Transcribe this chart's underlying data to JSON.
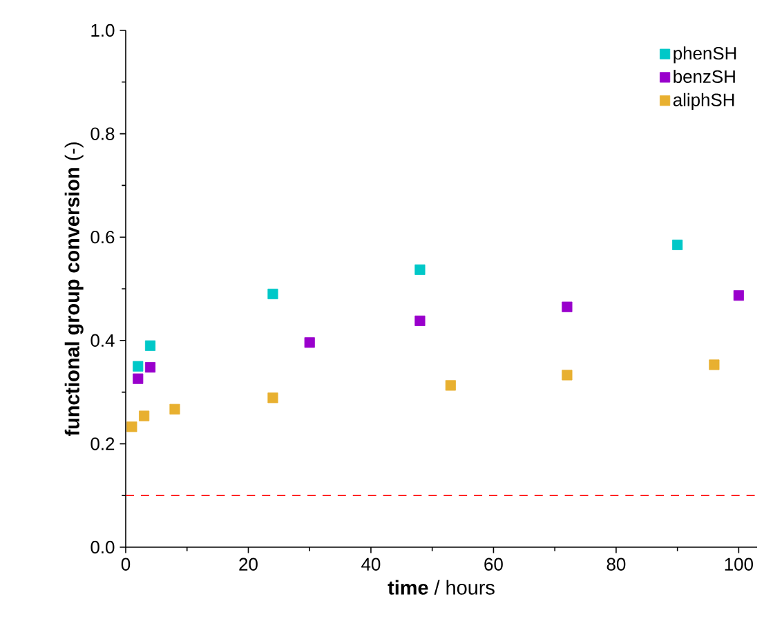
{
  "chart_data": {
    "type": "scatter",
    "xlabel": "**time** / hours",
    "ylabel": "**functional group conversion** (-)",
    "xlim": [
      0,
      103
    ],
    "ylim": [
      0,
      1.0
    ],
    "xticks": [
      0,
      20,
      40,
      60,
      80,
      100
    ],
    "yticks": [
      {
        "value": 0,
        "label": "0.0"
      },
      {
        "value": 0.2,
        "label": "0.2"
      },
      {
        "value": 0.4,
        "label": "0.4"
      },
      {
        "value": 0.6,
        "label": "0.6"
      },
      {
        "value": 0.8,
        "label": "0.8"
      },
      {
        "value": 1.0,
        "label": "1.0"
      }
    ],
    "marker": "square",
    "legend": "top right",
    "grid": false,
    "series": [
      {
        "name": "phenSH",
        "color": "#00c8c8",
        "x": [
          2,
          4,
          24,
          48,
          90
        ],
        "values": [
          0.35,
          0.39,
          0.49,
          0.537,
          0.585
        ]
      },
      {
        "name": "benzSH",
        "color": "#9900cc",
        "x": [
          2,
          4,
          30,
          48,
          72,
          100
        ],
        "values": [
          0.326,
          0.348,
          0.396,
          0.438,
          0.465,
          0.487
        ]
      },
      {
        "name": "aliphSH",
        "color": "#e8b030",
        "x": [
          1,
          3,
          8,
          24,
          53,
          72,
          96
        ],
        "values": [
          0.233,
          0.254,
          0.267,
          0.289,
          0.313,
          0.333,
          0.353
        ]
      }
    ],
    "ref_lines": [
      {
        "axis": "y",
        "value": 0.1,
        "color": "#ff0000",
        "line_style": "dashed"
      }
    ]
  }
}
